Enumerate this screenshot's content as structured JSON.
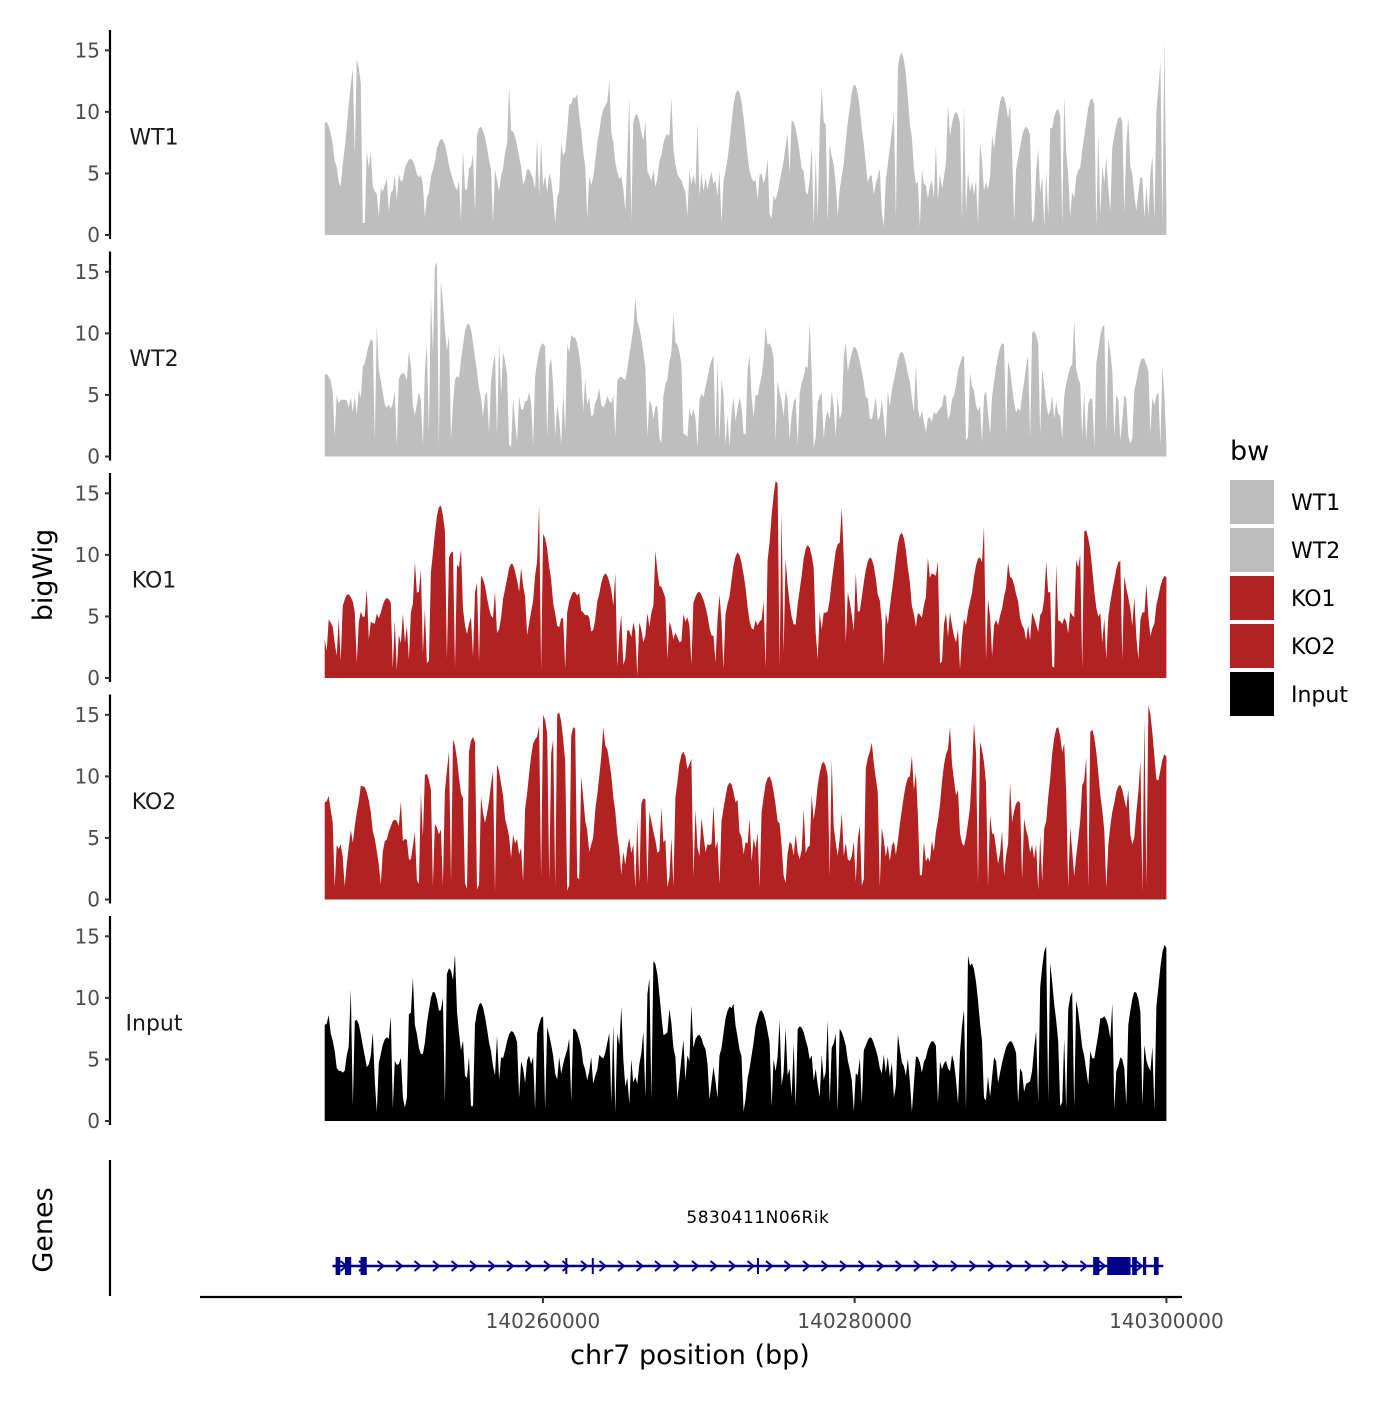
{
  "chart_data": {
    "type": "area",
    "xlabel": "chr7 position (bp)",
    "ylabel": "bigWig",
    "gene_track_label": "Genes",
    "xlim": [
      140238000,
      140301000
    ],
    "data_range": [
      140246000,
      140300000
    ],
    "x_ticks": [
      140260000,
      140280000,
      140300000
    ],
    "x_tick_labels": [
      "140260000",
      "140280000",
      "140300000"
    ],
    "ylim": [
      0,
      16
    ],
    "y_ticks": [
      0,
      5,
      10,
      15
    ],
    "y_tick_labels": [
      "0",
      "5",
      "10",
      "15"
    ],
    "legend": {
      "title": "bw",
      "position": "right",
      "entries": [
        {
          "label": "WT1",
          "color": "#BEBEBE"
        },
        {
          "label": "WT2",
          "color": "#BEBEBE"
        },
        {
          "label": "KO1",
          "color": "#B22222"
        },
        {
          "label": "KO2",
          "color": "#B22222"
        },
        {
          "label": "Input",
          "color": "#000000"
        }
      ]
    },
    "series": [
      {
        "name": "WT1",
        "color": "#BEBEBE",
        "peaks": [
          {
            "x": 140246100,
            "y": 9.2
          },
          {
            "x": 140247900,
            "y": 6.5
          },
          {
            "x": 140248000,
            "y": 14.3
          },
          {
            "x": 140251500,
            "y": 6.2
          },
          {
            "x": 140253500,
            "y": 7.8
          },
          {
            "x": 140256000,
            "y": 8.8
          },
          {
            "x": 140258000,
            "y": 8.5
          },
          {
            "x": 140262000,
            "y": 11.2
          },
          {
            "x": 140264000,
            "y": 10.5
          },
          {
            "x": 140266000,
            "y": 9.8
          },
          {
            "x": 140268000,
            "y": 8.2
          },
          {
            "x": 140272500,
            "y": 11.8
          },
          {
            "x": 140276000,
            "y": 9.3
          },
          {
            "x": 140278000,
            "y": 9.2
          },
          {
            "x": 140280000,
            "y": 12.2
          },
          {
            "x": 140283000,
            "y": 14.8
          },
          {
            "x": 140286500,
            "y": 10.0
          },
          {
            "x": 140289500,
            "y": 11.3
          },
          {
            "x": 140291000,
            "y": 8.8
          },
          {
            "x": 140293000,
            "y": 10.2
          },
          {
            "x": 140295200,
            "y": 11.1
          },
          {
            "x": 140297000,
            "y": 9.6
          },
          {
            "x": 140299900,
            "y": 16.0
          }
        ]
      },
      {
        "name": "WT2",
        "color": "#BEBEBE",
        "peaks": [
          {
            "x": 140246100,
            "y": 6.7
          },
          {
            "x": 140249000,
            "y": 9.5
          },
          {
            "x": 140251000,
            "y": 6.8
          },
          {
            "x": 140253000,
            "y": 8.4
          },
          {
            "x": 140253200,
            "y": 15.8
          },
          {
            "x": 140255200,
            "y": 10.8
          },
          {
            "x": 140257200,
            "y": 9.3
          },
          {
            "x": 140260000,
            "y": 9.2
          },
          {
            "x": 140262000,
            "y": 9.7
          },
          {
            "x": 140265000,
            "y": 6.5
          },
          {
            "x": 140266000,
            "y": 11.0
          },
          {
            "x": 140268500,
            "y": 9.3
          },
          {
            "x": 140271000,
            "y": 8.2
          },
          {
            "x": 140274500,
            "y": 9.2
          },
          {
            "x": 140277000,
            "y": 7.2
          },
          {
            "x": 140280000,
            "y": 8.9
          },
          {
            "x": 140283000,
            "y": 8.5
          },
          {
            "x": 140287000,
            "y": 8.2
          },
          {
            "x": 140289500,
            "y": 9.2
          },
          {
            "x": 140291500,
            "y": 10.2
          },
          {
            "x": 140294000,
            "y": 7.5
          },
          {
            "x": 140296000,
            "y": 10.7
          },
          {
            "x": 140298500,
            "y": 8.0
          },
          {
            "x": 140299900,
            "y": 5.0
          }
        ]
      },
      {
        "name": "KO1",
        "color": "#B22222",
        "peaks": [
          {
            "x": 140246100,
            "y": 2.2
          },
          {
            "x": 140247500,
            "y": 6.8
          },
          {
            "x": 140250000,
            "y": 6.5
          },
          {
            "x": 140252000,
            "y": 7.0
          },
          {
            "x": 140253400,
            "y": 14.0
          },
          {
            "x": 140254200,
            "y": 10.3
          },
          {
            "x": 140256000,
            "y": 8.3
          },
          {
            "x": 140258000,
            "y": 9.3
          },
          {
            "x": 140260000,
            "y": 11.7
          },
          {
            "x": 140262000,
            "y": 7.0
          },
          {
            "x": 140264000,
            "y": 8.5
          },
          {
            "x": 140266000,
            "y": 0.2
          },
          {
            "x": 140267500,
            "y": 7.5
          },
          {
            "x": 140270000,
            "y": 7.0
          },
          {
            "x": 140272500,
            "y": 10.2
          },
          {
            "x": 140275000,
            "y": 15.8
          },
          {
            "x": 140277000,
            "y": 10.8
          },
          {
            "x": 140279000,
            "y": 11.0
          },
          {
            "x": 140281000,
            "y": 9.8
          },
          {
            "x": 140283000,
            "y": 11.8
          },
          {
            "x": 140285000,
            "y": 8.5
          },
          {
            "x": 140288000,
            "y": 9.8
          },
          {
            "x": 140290000,
            "y": 8.2
          },
          {
            "x": 140292500,
            "y": 7.0
          },
          {
            "x": 140294800,
            "y": 12.0
          },
          {
            "x": 140297000,
            "y": 9.5
          },
          {
            "x": 140299900,
            "y": 8.3
          }
        ]
      },
      {
        "name": "KO2",
        "color": "#B22222",
        "peaks": [
          {
            "x": 140246100,
            "y": 8.0
          },
          {
            "x": 140248500,
            "y": 9.2
          },
          {
            "x": 140250500,
            "y": 6.5
          },
          {
            "x": 140252500,
            "y": 10.2
          },
          {
            "x": 140254200,
            "y": 13.0
          },
          {
            "x": 140255500,
            "y": 13.2
          },
          {
            "x": 140257000,
            "y": 11.0
          },
          {
            "x": 140259500,
            "y": 13.0
          },
          {
            "x": 140260000,
            "y": 15.0
          },
          {
            "x": 140261000,
            "y": 15.2
          },
          {
            "x": 140262000,
            "y": 14.0
          },
          {
            "x": 140264000,
            "y": 12.5
          },
          {
            "x": 140266500,
            "y": 8.2
          },
          {
            "x": 140269000,
            "y": 12.0
          },
          {
            "x": 140272000,
            "y": 9.5
          },
          {
            "x": 140274500,
            "y": 10.0
          },
          {
            "x": 140278000,
            "y": 11.2
          },
          {
            "x": 140281000,
            "y": 12.0
          },
          {
            "x": 140283500,
            "y": 10.0
          },
          {
            "x": 140286000,
            "y": 12.2
          },
          {
            "x": 140288000,
            "y": 12.8
          },
          {
            "x": 140290500,
            "y": 8.0
          },
          {
            "x": 140293000,
            "y": 14.0
          },
          {
            "x": 140295200,
            "y": 13.8
          },
          {
            "x": 140297000,
            "y": 9.3
          },
          {
            "x": 140298800,
            "y": 15.8
          },
          {
            "x": 140299900,
            "y": 11.8
          }
        ]
      },
      {
        "name": "Input",
        "color": "#000000",
        "peaks": [
          {
            "x": 140246100,
            "y": 7.9
          },
          {
            "x": 140248000,
            "y": 8.2
          },
          {
            "x": 140250000,
            "y": 6.8
          },
          {
            "x": 140251500,
            "y": 8.8
          },
          {
            "x": 140253000,
            "y": 10.5
          },
          {
            "x": 140254000,
            "y": 12.4
          },
          {
            "x": 140256000,
            "y": 9.6
          },
          {
            "x": 140258000,
            "y": 7.3
          },
          {
            "x": 140260000,
            "y": 8.5
          },
          {
            "x": 140262000,
            "y": 7.5
          },
          {
            "x": 140264500,
            "y": 7.8
          },
          {
            "x": 140267100,
            "y": 13.0
          },
          {
            "x": 140268000,
            "y": 7.2
          },
          {
            "x": 140270000,
            "y": 7.0
          },
          {
            "x": 140272000,
            "y": 9.3
          },
          {
            "x": 140274000,
            "y": 9.0
          },
          {
            "x": 140276500,
            "y": 7.7
          },
          {
            "x": 140279000,
            "y": 7.5
          },
          {
            "x": 140281000,
            "y": 6.8
          },
          {
            "x": 140285000,
            "y": 6.5
          },
          {
            "x": 140287500,
            "y": 12.8
          },
          {
            "x": 140290000,
            "y": 6.5
          },
          {
            "x": 140292300,
            "y": 14.2
          },
          {
            "x": 140294000,
            "y": 10.5
          },
          {
            "x": 140296000,
            "y": 8.5
          },
          {
            "x": 140298000,
            "y": 10.5
          },
          {
            "x": 140299900,
            "y": 14.3
          }
        ]
      }
    ],
    "gene": {
      "name": "5830411N06Rik",
      "start": 140246500,
      "end": 140299800,
      "strand": "+",
      "color": "#00008B",
      "exons": [
        [
          140246700,
          140247000
        ],
        [
          140247300,
          140247700
        ],
        [
          140248300,
          140248700
        ],
        [
          140295300,
          140295700
        ],
        [
          140296200,
          140297700
        ],
        [
          140297800,
          140298100
        ],
        [
          140298500,
          140298700
        ],
        [
          140299200,
          140299500
        ]
      ]
    }
  }
}
